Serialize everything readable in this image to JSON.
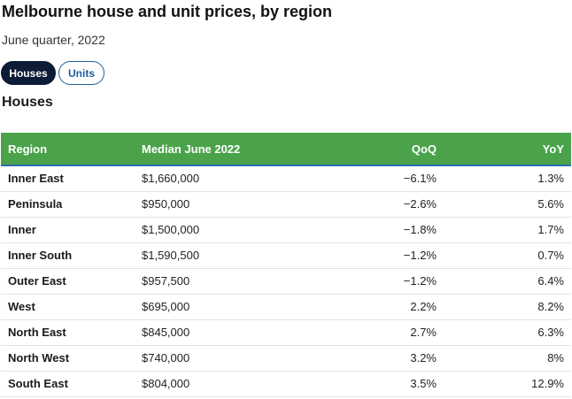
{
  "header": {
    "title": "Melbourne house and unit prices, by region",
    "subtitle": "June quarter, 2022"
  },
  "tabs": [
    {
      "label": "Houses",
      "active": true
    },
    {
      "label": "Units",
      "active": false
    }
  ],
  "section_heading": "Houses",
  "colors": {
    "header_bg": "#4aa34a",
    "active_tab_bg": "#0d1b36",
    "inactive_tab_border": "#1f5f9b"
  },
  "table": {
    "columns": [
      "Region",
      "Median June 2022",
      "QoQ",
      "YoY"
    ],
    "rows": [
      {
        "region": "Inner East",
        "median": "$1,660,000",
        "qoq": "−6.1%",
        "yoy": "1.3%"
      },
      {
        "region": "Peninsula",
        "median": "$950,000",
        "qoq": "−2.6%",
        "yoy": "5.6%"
      },
      {
        "region": "Inner",
        "median": "$1,500,000",
        "qoq": "−1.8%",
        "yoy": "1.7%"
      },
      {
        "region": "Inner South",
        "median": "$1,590,500",
        "qoq": "−1.2%",
        "yoy": "0.7%"
      },
      {
        "region": "Outer East",
        "median": "$957,500",
        "qoq": "−1.2%",
        "yoy": "6.4%"
      },
      {
        "region": "West",
        "median": "$695,000",
        "qoq": "2.2%",
        "yoy": "8.2%"
      },
      {
        "region": "North East",
        "median": "$845,000",
        "qoq": "2.7%",
        "yoy": "6.3%"
      },
      {
        "region": "North West",
        "median": "$740,000",
        "qoq": "3.2%",
        "yoy": "8%"
      },
      {
        "region": "South East",
        "median": "$804,000",
        "qoq": "3.5%",
        "yoy": "12.9%"
      }
    ]
  }
}
